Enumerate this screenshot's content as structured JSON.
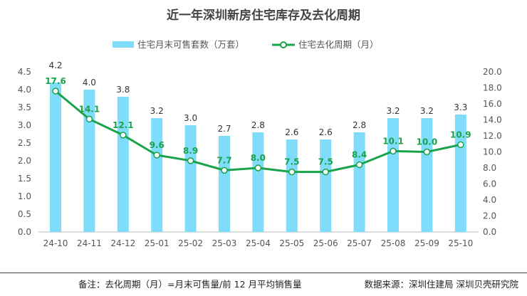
{
  "chart_data": {
    "type": "bar+line",
    "title": "近一年深圳新房住宅库存及去化周期",
    "categories": [
      "24-10",
      "24-11",
      "24-12",
      "25-01",
      "25-02",
      "25-03",
      "25-04",
      "25-05",
      "25-06",
      "25-07",
      "25-08",
      "25-09",
      "25-10"
    ],
    "series": [
      {
        "name": "住宅月末可售套数（万套）",
        "type": "bar",
        "axis": "left",
        "color": "#7fdcfb",
        "values": [
          4.2,
          4.0,
          3.8,
          3.2,
          3.0,
          2.7,
          2.8,
          2.6,
          2.6,
          2.8,
          3.2,
          3.2,
          3.3
        ]
      },
      {
        "name": "住宅去化周期（月）",
        "type": "line",
        "axis": "right",
        "color": "#1aa34a",
        "values": [
          17.6,
          14.1,
          12.1,
          9.6,
          8.9,
          7.7,
          8.0,
          7.5,
          7.5,
          8.4,
          10.1,
          10.0,
          10.9
        ]
      }
    ],
    "left_axis": {
      "min": 0,
      "max": 4.5,
      "step": 0.5,
      "decimals": 1
    },
    "right_axis": {
      "min": 0,
      "max": 20,
      "step": 2,
      "decimals": 1
    },
    "legend": "top",
    "grid": false
  },
  "footer": {
    "note": "备注：去化周期（月）=月末可售量/前 12 月平均销售量",
    "source": "数据来源：深圳住建局 深圳贝壳研究院"
  }
}
